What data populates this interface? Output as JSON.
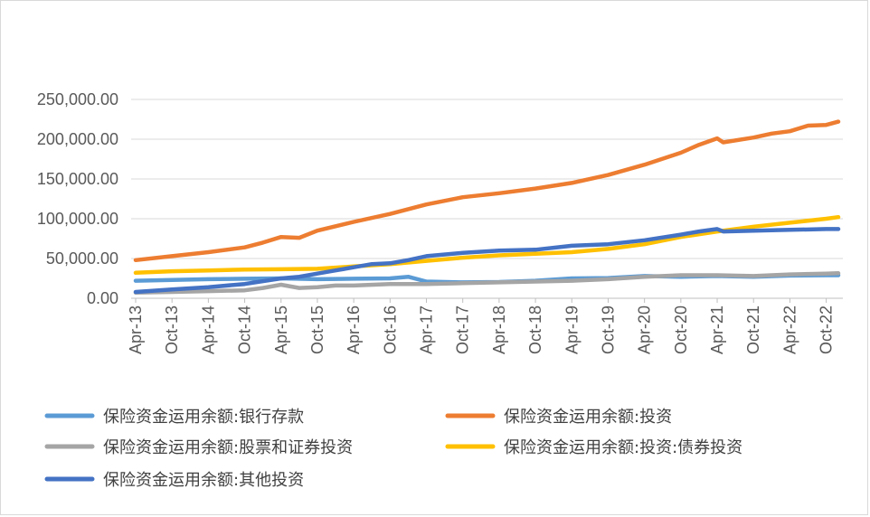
{
  "chart_data": {
    "type": "line",
    "x_ticks": [
      "Apr-13",
      "Oct-13",
      "Apr-14",
      "Oct-14",
      "Apr-15",
      "Oct-15",
      "Apr-16",
      "Oct-16",
      "Apr-17",
      "Oct-17",
      "Apr-18",
      "Oct-18",
      "Apr-19",
      "Oct-19",
      "Apr-20",
      "Oct-20",
      "Apr-21",
      "Oct-21",
      "Apr-22",
      "Oct-22"
    ],
    "y_ticks": [
      "0.00",
      "50,000.00",
      "100,000.00",
      "150,000.00",
      "200,000.00",
      "250,000.00"
    ],
    "ylim": [
      0,
      250000
    ],
    "grid": true,
    "legend_position": "bottom",
    "series": [
      {
        "name": "保险资金运用余额:银行存款",
        "color": "#5B9BD5",
        "points": [
          [
            "Apr-13",
            22000
          ],
          [
            "Oct-13",
            23000
          ],
          [
            "Apr-14",
            24000
          ],
          [
            "Oct-14",
            24500
          ],
          [
            "Apr-15",
            25000
          ],
          [
            "Oct-15",
            24000
          ],
          [
            "Apr-16",
            24500
          ],
          [
            "Oct-16",
            25000
          ],
          [
            "Jan-17",
            27000
          ],
          [
            "Apr-17",
            21000
          ],
          [
            "Oct-17",
            20000
          ],
          [
            "Apr-18",
            20500
          ],
          [
            "Oct-18",
            22000
          ],
          [
            "Apr-19",
            25000
          ],
          [
            "Oct-19",
            25500
          ],
          [
            "Apr-20",
            28000
          ],
          [
            "Oct-20",
            27000
          ],
          [
            "Apr-21",
            28000
          ],
          [
            "Oct-21",
            27000
          ],
          [
            "Apr-22",
            28500
          ],
          [
            "Oct-22",
            29000
          ],
          [
            "Dec-22",
            29000
          ]
        ]
      },
      {
        "name": "保险资金运用余额:投资",
        "color": "#ED7D31",
        "points": [
          [
            "Apr-13",
            48000
          ],
          [
            "Oct-13",
            53000
          ],
          [
            "Apr-14",
            58000
          ],
          [
            "Oct-14",
            64000
          ],
          [
            "Jan-15",
            70000
          ],
          [
            "Apr-15",
            77000
          ],
          [
            "Jul-15",
            76000
          ],
          [
            "Oct-15",
            85000
          ],
          [
            "Apr-16",
            96000
          ],
          [
            "Oct-16",
            106000
          ],
          [
            "Apr-17",
            118000
          ],
          [
            "Oct-17",
            127000
          ],
          [
            "Apr-18",
            132000
          ],
          [
            "Oct-18",
            138000
          ],
          [
            "Apr-19",
            145000
          ],
          [
            "Oct-19",
            155000
          ],
          [
            "Apr-20",
            168000
          ],
          [
            "Oct-20",
            183000
          ],
          [
            "Jan-21",
            193000
          ],
          [
            "Apr-21",
            201000
          ],
          [
            "May-21",
            196000
          ],
          [
            "Oct-21",
            202000
          ],
          [
            "Jan-22",
            207000
          ],
          [
            "Apr-22",
            210000
          ],
          [
            "Jul-22",
            217000
          ],
          [
            "Oct-22",
            218000
          ],
          [
            "Dec-22",
            222000
          ]
        ]
      },
      {
        "name": "保险资金运用余额:股票和证券投资",
        "color": "#A5A5A5",
        "points": [
          [
            "Apr-13",
            7000
          ],
          [
            "Oct-13",
            8000
          ],
          [
            "Apr-14",
            9000
          ],
          [
            "Oct-14",
            10000
          ],
          [
            "Jan-15",
            13000
          ],
          [
            "Apr-15",
            17000
          ],
          [
            "Jul-15",
            13000
          ],
          [
            "Oct-15",
            14000
          ],
          [
            "Jan-16",
            16000
          ],
          [
            "Apr-16",
            16000
          ],
          [
            "Oct-16",
            18000
          ],
          [
            "Apr-17",
            18000
          ],
          [
            "Oct-17",
            19000
          ],
          [
            "Apr-18",
            20000
          ],
          [
            "Oct-18",
            21000
          ],
          [
            "Apr-19",
            22000
          ],
          [
            "Oct-19",
            24000
          ],
          [
            "Apr-20",
            27000
          ],
          [
            "Oct-20",
            29000
          ],
          [
            "Apr-21",
            29000
          ],
          [
            "Oct-21",
            28000
          ],
          [
            "Apr-22",
            30000
          ],
          [
            "Oct-22",
            31000
          ],
          [
            "Dec-22",
            31500
          ]
        ]
      },
      {
        "name": "保险资金运用余额:投资:债券投资",
        "color": "#FFC000",
        "points": [
          [
            "Apr-13",
            32000
          ],
          [
            "Oct-13",
            34000
          ],
          [
            "Apr-14",
            35000
          ],
          [
            "Oct-14",
            36000
          ],
          [
            "Apr-15",
            36500
          ],
          [
            "Oct-15",
            37000
          ],
          [
            "Apr-16",
            40000
          ],
          [
            "Oct-16",
            43000
          ],
          [
            "Apr-17",
            47000
          ],
          [
            "Oct-17",
            51000
          ],
          [
            "Apr-18",
            54000
          ],
          [
            "Oct-18",
            56000
          ],
          [
            "Apr-19",
            58000
          ],
          [
            "Oct-19",
            62000
          ],
          [
            "Apr-20",
            68000
          ],
          [
            "Oct-20",
            77000
          ],
          [
            "Apr-21",
            84000
          ],
          [
            "Oct-21",
            90000
          ],
          [
            "Apr-22",
            95000
          ],
          [
            "Oct-22",
            100000
          ],
          [
            "Dec-22",
            102000
          ]
        ]
      },
      {
        "name": "保险资金运用余额:其他投资",
        "color": "#4472C4",
        "points": [
          [
            "Apr-13",
            8000
          ],
          [
            "Oct-13",
            11000
          ],
          [
            "Apr-14",
            14000
          ],
          [
            "Oct-14",
            18000
          ],
          [
            "Apr-15",
            25000
          ],
          [
            "Jul-15",
            27000
          ],
          [
            "Oct-15",
            31000
          ],
          [
            "Jan-16",
            35000
          ],
          [
            "Apr-16",
            39000
          ],
          [
            "Jul-16",
            43000
          ],
          [
            "Oct-16",
            44000
          ],
          [
            "Jan-17",
            48000
          ],
          [
            "Apr-17",
            53000
          ],
          [
            "Oct-17",
            57000
          ],
          [
            "Apr-18",
            60000
          ],
          [
            "Oct-18",
            61000
          ],
          [
            "Apr-19",
            66000
          ],
          [
            "Oct-19",
            68000
          ],
          [
            "Apr-20",
            73000
          ],
          [
            "Oct-20",
            80000
          ],
          [
            "Jan-21",
            84000
          ],
          [
            "Apr-21",
            87000
          ],
          [
            "May-21",
            84000
          ],
          [
            "Oct-21",
            85000
          ],
          [
            "Apr-22",
            86000
          ],
          [
            "Oct-22",
            87000
          ],
          [
            "Dec-22",
            87000
          ]
        ]
      }
    ]
  }
}
